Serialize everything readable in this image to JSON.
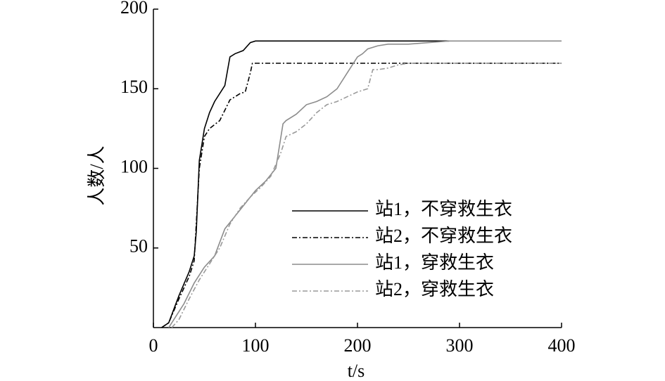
{
  "chart_data": {
    "type": "line",
    "xlabel": "t/s",
    "ylabel": "人数/人",
    "xlim": [
      0,
      400
    ],
    "xticks": [
      0,
      100,
      200,
      300,
      400
    ],
    "ylim": [
      0,
      200
    ],
    "yticks": [
      50,
      100,
      150,
      200
    ],
    "grid": false,
    "legend": "lower right",
    "series": [
      {
        "name": "站1，不穿救生衣",
        "color": "#000000",
        "linestyle": "solid",
        "x": [
          8,
          15,
          25,
          35,
          40,
          42,
          45,
          50,
          55,
          60,
          70,
          75,
          80,
          88,
          95,
          100,
          290
        ],
        "values": [
          0,
          3,
          20,
          35,
          45,
          60,
          105,
          125,
          135,
          142,
          152,
          170,
          172,
          174,
          179,
          180,
          180
        ]
      },
      {
        "name": "站2，不穿救生衣",
        "color": "#000000",
        "linestyle": "dashdot",
        "x": [
          8,
          15,
          25,
          35,
          40,
          45,
          50,
          55,
          65,
          75,
          85,
          90,
          95,
          97,
          100,
          400
        ],
        "values": [
          0,
          3,
          18,
          32,
          42,
          100,
          120,
          125,
          130,
          143,
          147,
          148,
          160,
          166,
          166,
          166
        ]
      },
      {
        "name": "站1，穿救生衣",
        "color": "#8c8c8c",
        "linestyle": "solid",
        "x": [
          15,
          20,
          30,
          40,
          50,
          60,
          70,
          80,
          90,
          100,
          110,
          120,
          127,
          130,
          140,
          150,
          160,
          170,
          180,
          190,
          200,
          205,
          210,
          220,
          230,
          250,
          270,
          290,
          400
        ],
        "values": [
          0,
          5,
          15,
          28,
          38,
          45,
          62,
          70,
          78,
          86,
          92,
          100,
          128,
          130,
          134,
          140,
          142,
          145,
          150,
          160,
          170,
          172,
          175,
          177,
          178,
          178,
          179,
          180,
          180
        ]
      },
      {
        "name": "站2，穿救生衣",
        "color": "#9a9a9a",
        "linestyle": "dashdot",
        "x": [
          18,
          25,
          35,
          45,
          55,
          65,
          75,
          85,
          95,
          105,
          115,
          125,
          130,
          140,
          150,
          160,
          170,
          180,
          190,
          200,
          210,
          215,
          220,
          230,
          240,
          250,
          400
        ],
        "values": [
          0,
          5,
          18,
          30,
          40,
          50,
          65,
          75,
          82,
          88,
          95,
          110,
          120,
          123,
          128,
          135,
          140,
          142,
          145,
          148,
          150,
          162,
          162,
          163,
          165,
          166,
          166
        ]
      }
    ]
  }
}
